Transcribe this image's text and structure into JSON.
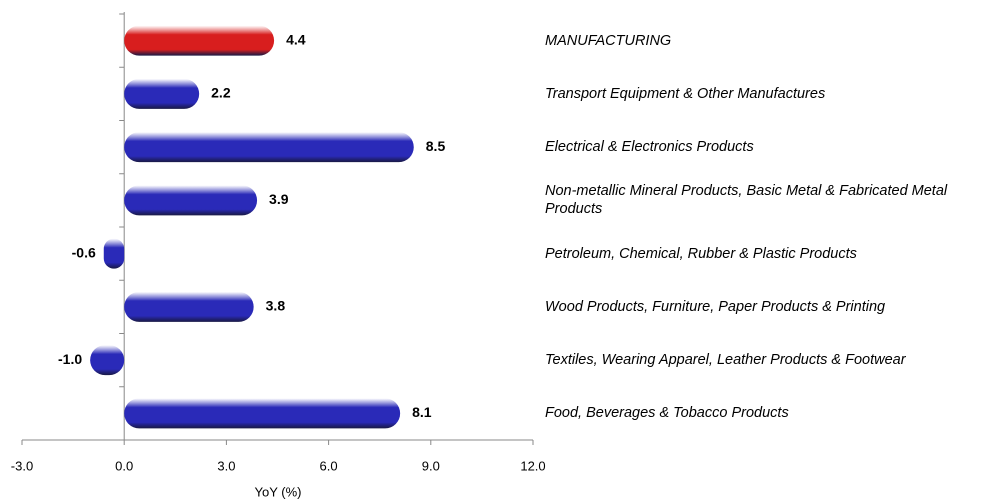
{
  "chart_data": {
    "type": "hbar",
    "categories": [
      "MANUFACTURING",
      "Transport Equipment & Other Manufactures",
      "Electrical & Electronics Products",
      "Non-metallic Mineral Products, Basic Metal & Fabricated Metal Products",
      "Petroleum, Chemical, Rubber & Plastic Products",
      "Wood Products, Furniture, Paper Products & Printing",
      "Textiles, Wearing Apparel, Leather Products & Footwear",
      "Food, Beverages & Tobacco Products"
    ],
    "values": [
      4.4,
      2.2,
      8.5,
      3.9,
      -0.6,
      3.8,
      -1.0,
      8.1
    ],
    "value_labels": [
      "4.4",
      "2.2",
      "8.5",
      "3.9",
      "-0.6",
      "3.8",
      "-1.0",
      "8.1"
    ],
    "colors": [
      "#d81e1e",
      "#2a2ab8",
      "#2a2ab8",
      "#2a2ab8",
      "#2a2ab8",
      "#2a2ab8",
      "#2a2ab8",
      "#2a2ab8"
    ],
    "xlabel": "YoY (%)",
    "xlim": [
      -3,
      12
    ],
    "xticks": [
      {
        "value": -3,
        "label": "-3.0"
      },
      {
        "value": 0,
        "label": "0.0"
      },
      {
        "value": 3,
        "label": "3.0"
      },
      {
        "value": 6,
        "label": "6.0"
      },
      {
        "value": 9,
        "label": "9.0"
      },
      {
        "value": 12,
        "label": "12.0"
      }
    ]
  }
}
